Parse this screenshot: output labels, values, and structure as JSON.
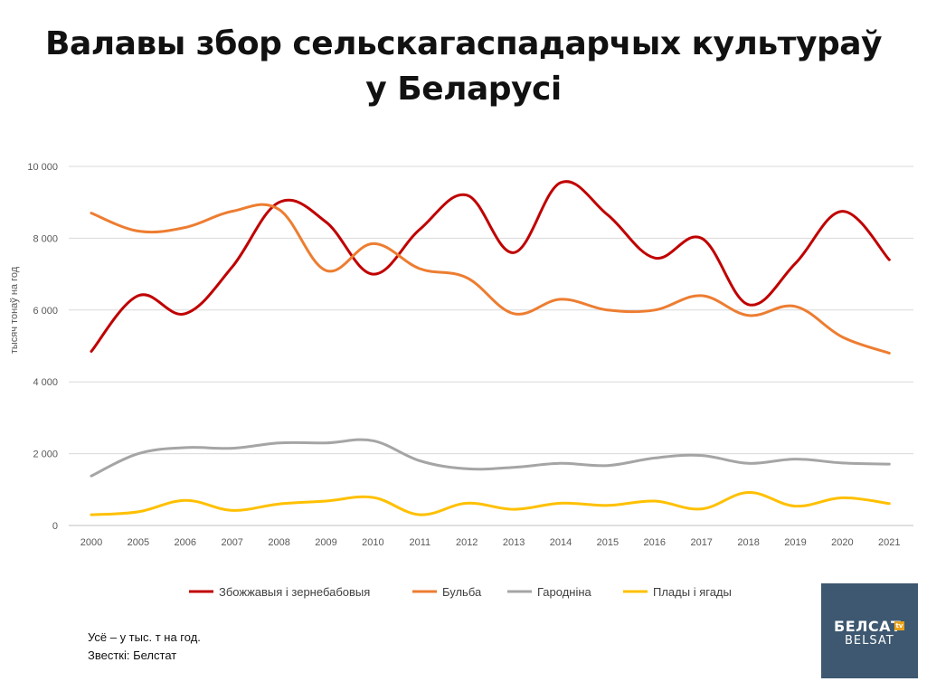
{
  "title_line1": "Валавы збор сельскагаспадарчых культураў",
  "title_line2": "у Беларусі",
  "notes": {
    "unit": "Усё – у тыс. т на год.",
    "source": "Звесткі: Белстат"
  },
  "logo": {
    "top": "БЕЛСАТ",
    "tv": "tv",
    "bottom": "BELSAT"
  },
  "chart_data": {
    "type": "line",
    "title": "Валавы збор сельскагаспадарчых культураў у Беларусі",
    "ylabel": "тысяч тонаў на год",
    "xlabel": "",
    "ylim": [
      0,
      10000
    ],
    "y_ticks": [
      0,
      2000,
      4000,
      6000,
      8000,
      10000
    ],
    "y_tick_labels": [
      "0",
      "2 000",
      "4 000",
      "6 000",
      "8 000",
      "10 000"
    ],
    "grid": true,
    "legend_position": "bottom",
    "categories": [
      "2000",
      "2005",
      "2006",
      "2007",
      "2008",
      "2009",
      "2010",
      "2011",
      "2012",
      "2013",
      "2014",
      "2015",
      "2016",
      "2017",
      "2018",
      "2019",
      "2020",
      "2021"
    ],
    "series": [
      {
        "name": "Збожжавыя і зернебабовыя",
        "color": "#c00000",
        "values": [
          4850,
          6400,
          5900,
          7200,
          9000,
          8450,
          7000,
          8250,
          9200,
          7600,
          9550,
          8650,
          7450,
          8000,
          6150,
          7300,
          8750,
          7400
        ]
      },
      {
        "name": "Бульба",
        "color": "#ed7d31",
        "values": [
          8700,
          8200,
          8300,
          8750,
          8800,
          7100,
          7850,
          7150,
          6900,
          5900,
          6300,
          6000,
          6000,
          6400,
          5850,
          6100,
          5250,
          4800
        ]
      },
      {
        "name": "Гароднiна",
        "color": "#a5a5a5",
        "values": [
          1380,
          2000,
          2170,
          2150,
          2300,
          2300,
          2360,
          1800,
          1580,
          1620,
          1730,
          1670,
          1880,
          1950,
          1730,
          1850,
          1740,
          1710
        ]
      },
      {
        "name": "Плады і ягады",
        "color": "#ffc000",
        "values": [
          300,
          380,
          700,
          420,
          600,
          680,
          780,
          300,
          620,
          450,
          620,
          560,
          680,
          460,
          920,
          540,
          770,
          610
        ]
      }
    ]
  }
}
